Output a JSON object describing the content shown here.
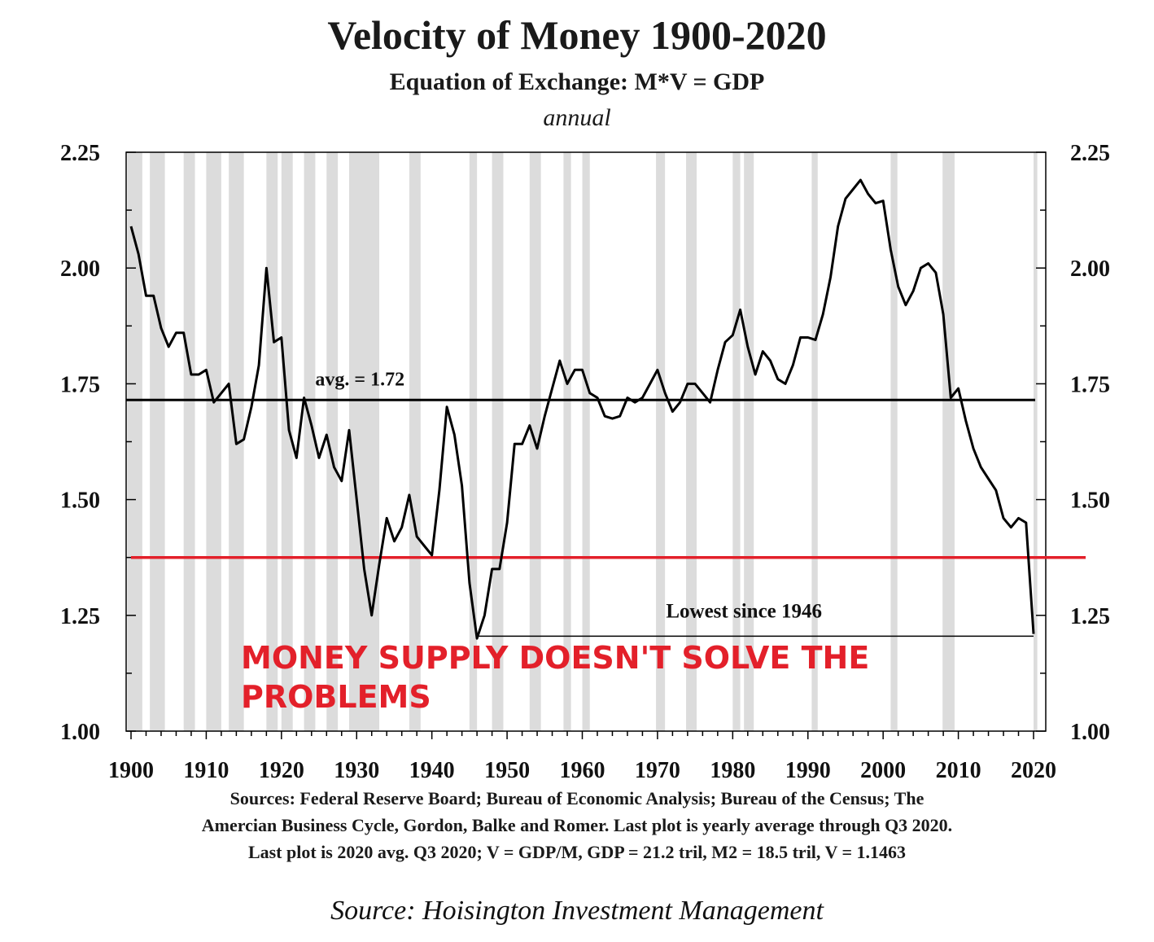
{
  "title": "Velocity of Money 1900-2020",
  "subtitle": "Equation of Exchange: M*V = GDP",
  "period": "annual",
  "avg_label": "avg. = 1.72",
  "low_label": "Lowest since 1946",
  "callout": "MONEY SUPPLY DOESN'T SOLVE THE PROBLEMS",
  "sources": [
    "Sources: Federal Reserve Board; Bureau of Economic Analysis; Bureau of the Census; The",
    "Amercian Business Cycle, Gordon, Balke and Romer. Last plot is yearly average through Q3 2020.",
    "Last plot is 2020 avg.  Q3 2020; V = GDP/M, GDP = 21.2 tril, M2 = 18.5 tril, V = 1.1463"
  ],
  "footer": "Source: Hoisington Investment Management",
  "colors": {
    "line": "#000000",
    "recession": "#dcdcdc",
    "red": "#e3202a"
  },
  "chart_data": {
    "type": "line",
    "xlim": [
      1900,
      2020
    ],
    "ylim": [
      1.0,
      2.25
    ],
    "x_ticks": [
      1900,
      1910,
      1920,
      1930,
      1940,
      1950,
      1960,
      1970,
      1980,
      1990,
      2000,
      2010,
      2020
    ],
    "y_ticks": [
      "1.00",
      "1.25",
      "1.50",
      "1.75",
      "2.00",
      "2.25"
    ],
    "grid": false,
    "recession_bands": [
      [
        1899.5,
        1901.5
      ],
      [
        1902.5,
        1904.5
      ],
      [
        1907,
        1908.5
      ],
      [
        1910,
        1912
      ],
      [
        1913,
        1915
      ],
      [
        1918,
        1919.5
      ],
      [
        1920,
        1921.5
      ],
      [
        1923,
        1924.5
      ],
      [
        1926,
        1927.5
      ],
      [
        1929,
        1933
      ],
      [
        1937,
        1938.5
      ],
      [
        1945,
        1946
      ],
      [
        1948,
        1949.5
      ],
      [
        1953,
        1954.5
      ],
      [
        1957.5,
        1958.5
      ],
      [
        1960,
        1961
      ],
      [
        1969.8,
        1971
      ],
      [
        1973.8,
        1975.2
      ],
      [
        1980,
        1981
      ],
      [
        1981.5,
        1982.8
      ],
      [
        1990.5,
        1991.3
      ],
      [
        2001,
        2001.9
      ],
      [
        2007.9,
        2009.5
      ],
      [
        2020,
        2020.5
      ]
    ],
    "series": [
      {
        "x": [
          1900,
          1901,
          1902,
          1903,
          1904,
          1905,
          1906,
          1907,
          1908,
          1909,
          1910,
          1911,
          1912,
          1913,
          1914,
          1915,
          1916,
          1917,
          1918,
          1919,
          1920,
          1921,
          1922,
          1923,
          1924,
          1925,
          1926,
          1927,
          1928,
          1929,
          1930,
          1931,
          1932,
          1933,
          1934,
          1935,
          1936,
          1937,
          1938,
          1939,
          1940,
          1941,
          1942,
          1943,
          1944,
          1945,
          1946,
          1947,
          1948,
          1949,
          1950,
          1951,
          1952,
          1953,
          1954,
          1955,
          1956,
          1957,
          1958,
          1959,
          1960,
          1961,
          1962,
          1963,
          1964,
          1965,
          1966,
          1967,
          1968,
          1969,
          1970,
          1971,
          1972,
          1973,
          1974,
          1975,
          1976,
          1977,
          1978,
          1979,
          1980,
          1981,
          1982,
          1983,
          1984,
          1985,
          1986,
          1987,
          1988,
          1989,
          1990,
          1991,
          1992,
          1993,
          1994,
          1995,
          1996,
          1997,
          1998,
          1999,
          2000,
          2001,
          2002,
          2003,
          2004,
          2005,
          2006,
          2007,
          2008,
          2009,
          2010,
          2011,
          2012,
          2013,
          2014,
          2015,
          2016,
          2017,
          2018,
          2019,
          2020
        ],
        "y": [
          2.09,
          2.03,
          1.94,
          1.94,
          1.87,
          1.83,
          1.86,
          1.86,
          1.77,
          1.77,
          1.78,
          1.71,
          1.73,
          1.75,
          1.62,
          1.63,
          1.7,
          1.79,
          2.0,
          1.84,
          1.85,
          1.65,
          1.59,
          1.72,
          1.66,
          1.59,
          1.64,
          1.57,
          1.54,
          1.65,
          1.5,
          1.35,
          1.25,
          1.36,
          1.46,
          1.41,
          1.44,
          1.51,
          1.42,
          1.4,
          1.38,
          1.52,
          1.7,
          1.64,
          1.53,
          1.32,
          1.2,
          1.25,
          1.35,
          1.35,
          1.45,
          1.62,
          1.62,
          1.66,
          1.61,
          1.68,
          1.74,
          1.8,
          1.75,
          1.78,
          1.78,
          1.73,
          1.72,
          1.68,
          1.675,
          1.68,
          1.72,
          1.71,
          1.72,
          1.75,
          1.78,
          1.73,
          1.69,
          1.71,
          1.75,
          1.75,
          1.73,
          1.71,
          1.78,
          1.84,
          1.855,
          1.91,
          1.83,
          1.77,
          1.82,
          1.8,
          1.76,
          1.75,
          1.79,
          1.85,
          1.85,
          1.845,
          1.9,
          1.98,
          2.09,
          2.15,
          2.17,
          2.19,
          2.16,
          2.14,
          2.145,
          2.04,
          1.96,
          1.92,
          1.95,
          2.0,
          2.01,
          1.99,
          1.9,
          1.72,
          1.74,
          1.67,
          1.61,
          1.57,
          1.545,
          1.52,
          1.46,
          1.44,
          1.46,
          1.45,
          1.21
        ]
      }
    ],
    "reference_lines": [
      {
        "label": "avg. = 1.72",
        "y": 1.715,
        "color": "#000000"
      },
      {
        "label": "",
        "y": 1.375,
        "color": "#e3202a"
      }
    ],
    "annotation": {
      "text": "Lowest since 1946",
      "from_x": 1946,
      "to_x": 2020,
      "y": 1.205
    }
  }
}
